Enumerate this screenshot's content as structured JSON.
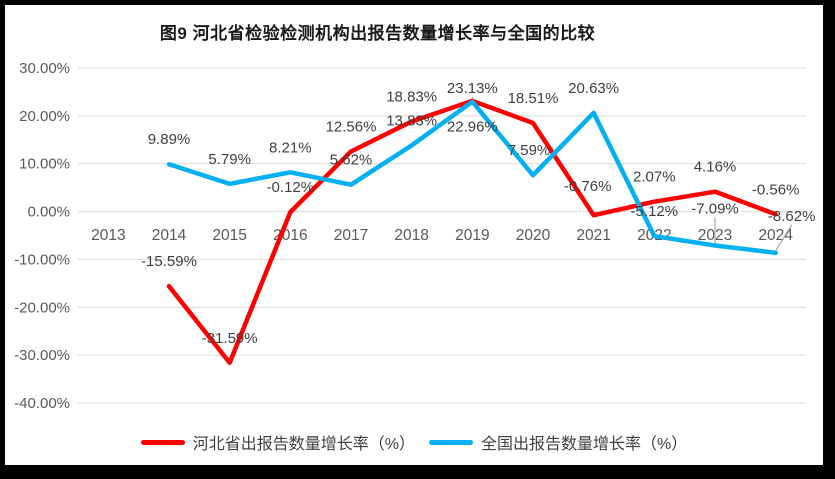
{
  "frame": {
    "background": "#000000",
    "canvas_background": "#ffffff"
  },
  "chart_data": {
    "type": "line",
    "title": "图9 河北省检验检测机构出报告数量增长率与全国的比较",
    "categories": [
      "2013",
      "2014",
      "2015",
      "2016",
      "2017",
      "2018",
      "2019",
      "2020",
      "2021",
      "2022",
      "2023",
      "2024"
    ],
    "series": [
      {
        "name": "河北省出报告数量增长率（%）",
        "color": "#FF0000",
        "values": [
          null,
          -15.59,
          -31.59,
          -0.12,
          12.56,
          18.83,
          23.13,
          18.51,
          -0.76,
          2.07,
          4.16,
          -0.56
        ]
      },
      {
        "name": "全国出报告数量增长率（%）",
        "color": "#00B0F0",
        "values": [
          null,
          9.89,
          5.79,
          8.21,
          5.62,
          13.83,
          22.96,
          7.59,
          20.63,
          -5.12,
          -7.09,
          -8.62
        ]
      }
    ],
    "ylim": [
      -40,
      30
    ],
    "ytick_step": 10,
    "ytick_format": "0.00%",
    "grid": true,
    "legend_position": "bottom",
    "data_labels": true,
    "colors": {
      "gridline": "#D9D9D9",
      "axis_text": "#595959",
      "data_label_text": "#3F3F3F",
      "leader_line": "#A6A6A6",
      "title_text": "#1A1A1A"
    },
    "label_overrides": {
      "0_6": {
        "dx": 0,
        "dy": -8,
        "leader": true
      },
      "0_8": {
        "dx": -6,
        "dy": -24
      },
      "1_6": {
        "dx": 0,
        "dy": 30
      },
      "1_7": {
        "dx": -4,
        "dy": -20
      },
      "1_10": {
        "dx": 0,
        "dy": -32,
        "leader": true
      },
      "1_11": {
        "dx": 16,
        "dy": -32,
        "leader": true
      }
    }
  }
}
